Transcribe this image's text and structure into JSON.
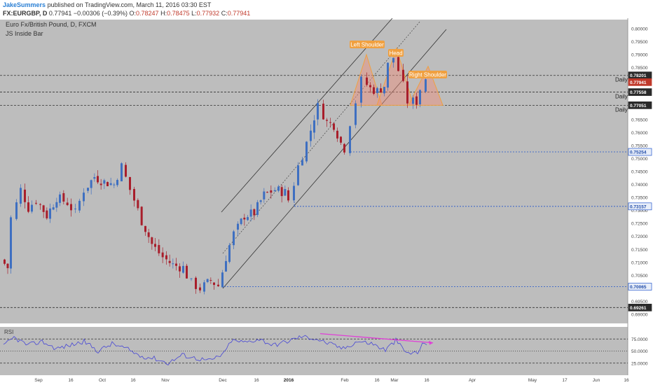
{
  "header": {
    "user": "JakeSummers",
    "published": "published on TradingView.com, March 11, 2016 03:30 EST",
    "symbol": "FX:EURGBP, D",
    "last": "0.77941",
    "change": "−0.00306 (−0.39%)",
    "o_label": "O:",
    "o_val": "0.78247",
    "h_label": "H:",
    "h_val": "0.78475",
    "l_label": "L:",
    "l_val": "0.77932",
    "c_label": "C:",
    "c_val": "0.77941"
  },
  "chart": {
    "instrument": "Euro Fx/British Pound, D, FXCM",
    "indicator": "JS Inside Bar",
    "rsi_label": "RSI",
    "price_ticks": [
      "0.80000",
      "0.79500",
      "0.79000",
      "0.78500",
      "0.78000",
      "0.77500",
      "0.77000",
      "0.76500",
      "0.76000",
      "0.75500",
      "0.75000",
      "0.74500",
      "0.74000",
      "0.73500",
      "0.73000",
      "0.72500",
      "0.72000",
      "0.71500",
      "0.71000",
      "0.70500",
      "0.70000",
      "0.69500",
      "0.69000"
    ],
    "rsi_ticks": [
      "75.0000",
      "50.0000",
      "25.0000"
    ],
    "level_tags": [
      {
        "text": "0.78201",
        "style": "dark"
      },
      {
        "text": "0.77941",
        "style": "red"
      },
      {
        "text": "0.77558",
        "style": "dark"
      },
      {
        "text": "0.77051",
        "style": "dark"
      },
      {
        "text": "0.75254",
        "style": "blue"
      },
      {
        "text": "0.73157",
        "style": "blue"
      },
      {
        "text": "0.70065",
        "style": "blue"
      },
      {
        "text": "0.69261",
        "style": "dark"
      }
    ],
    "level_labels": [
      "Daily",
      "Daily",
      "Daily"
    ],
    "annotations": [
      "Left Shoulder",
      "Head",
      "Right Shoulder"
    ],
    "x_labels": [
      "Sep",
      "16",
      "Oct",
      "16",
      "Nov",
      "Dec",
      "16",
      "2016",
      "Feb",
      "16",
      "Mar",
      "16",
      "Apr",
      "May",
      "17",
      "Jun",
      "16"
    ],
    "colors": {
      "bg": "#bdbdbd",
      "up": "#3e6fc1",
      "down": "#a81e2b",
      "orange": "#f0a040",
      "rsi": "#4646d6",
      "div": "#e03fd7"
    }
  }
}
